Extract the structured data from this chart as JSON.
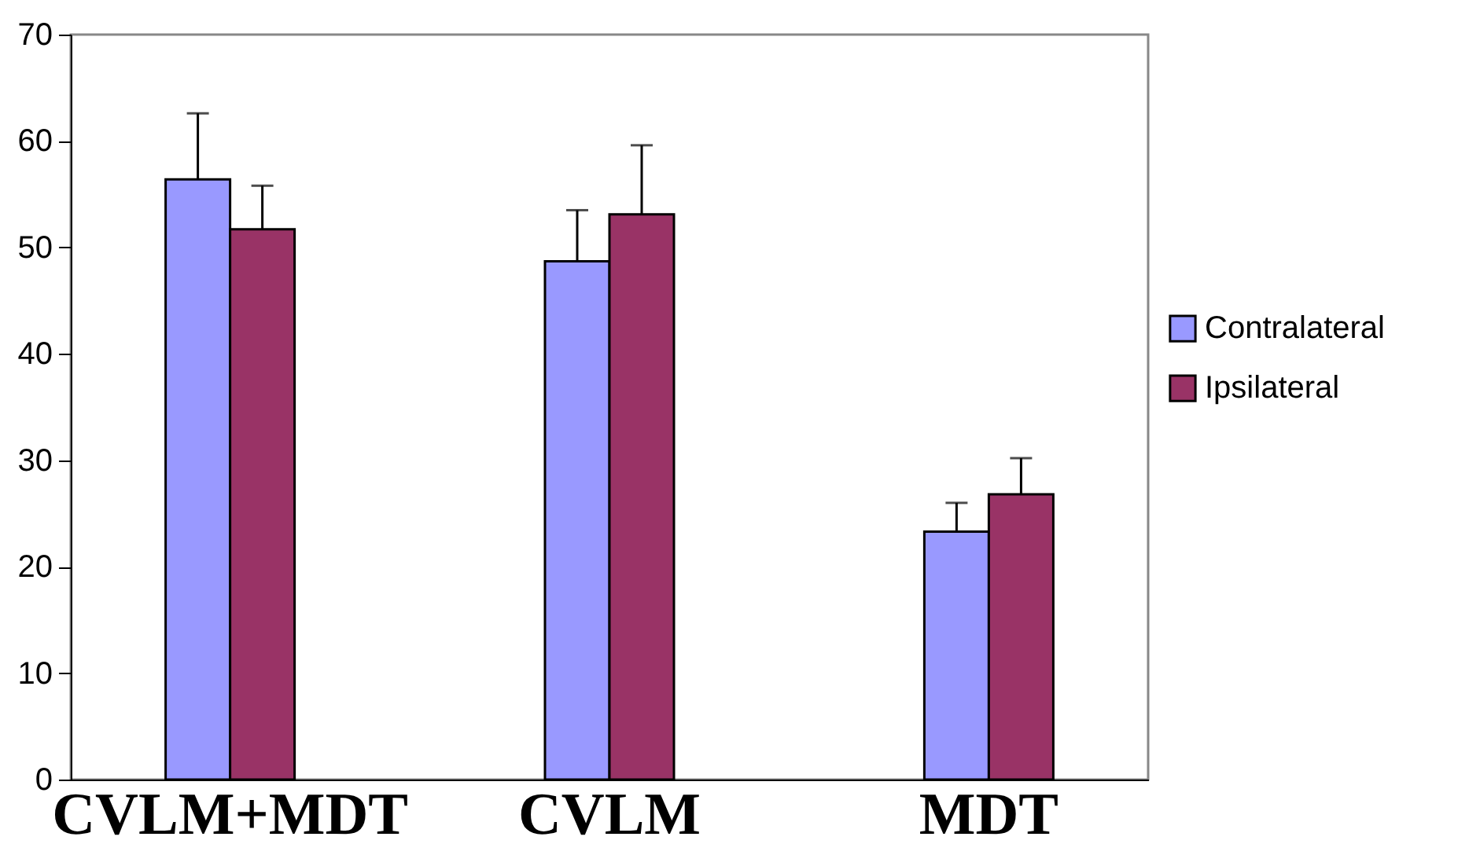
{
  "chart_data": {
    "type": "bar",
    "categories": [
      "CVLM+MDT",
      "CVLM",
      "MDT"
    ],
    "series": [
      {
        "name": "Contralateral",
        "color": "#9999ff",
        "values": [
          56.4,
          48.7,
          23.3
        ],
        "errors": [
          [
            56.4,
            62.6
          ],
          [
            48.7,
            53.5
          ],
          [
            23.3,
            26.0
          ]
        ]
      },
      {
        "name": "Ipsilateral",
        "color": "#993366",
        "values": [
          51.7,
          53.1,
          26.8
        ],
        "errors": [
          [
            51.7,
            55.8
          ],
          [
            53.1,
            59.6
          ],
          [
            26.8,
            30.2
          ]
        ]
      }
    ],
    "ylim": [
      0,
      70
    ],
    "yticks": [
      0,
      10,
      20,
      30,
      40,
      50,
      60,
      70
    ],
    "grid": false,
    "legend": "right"
  }
}
